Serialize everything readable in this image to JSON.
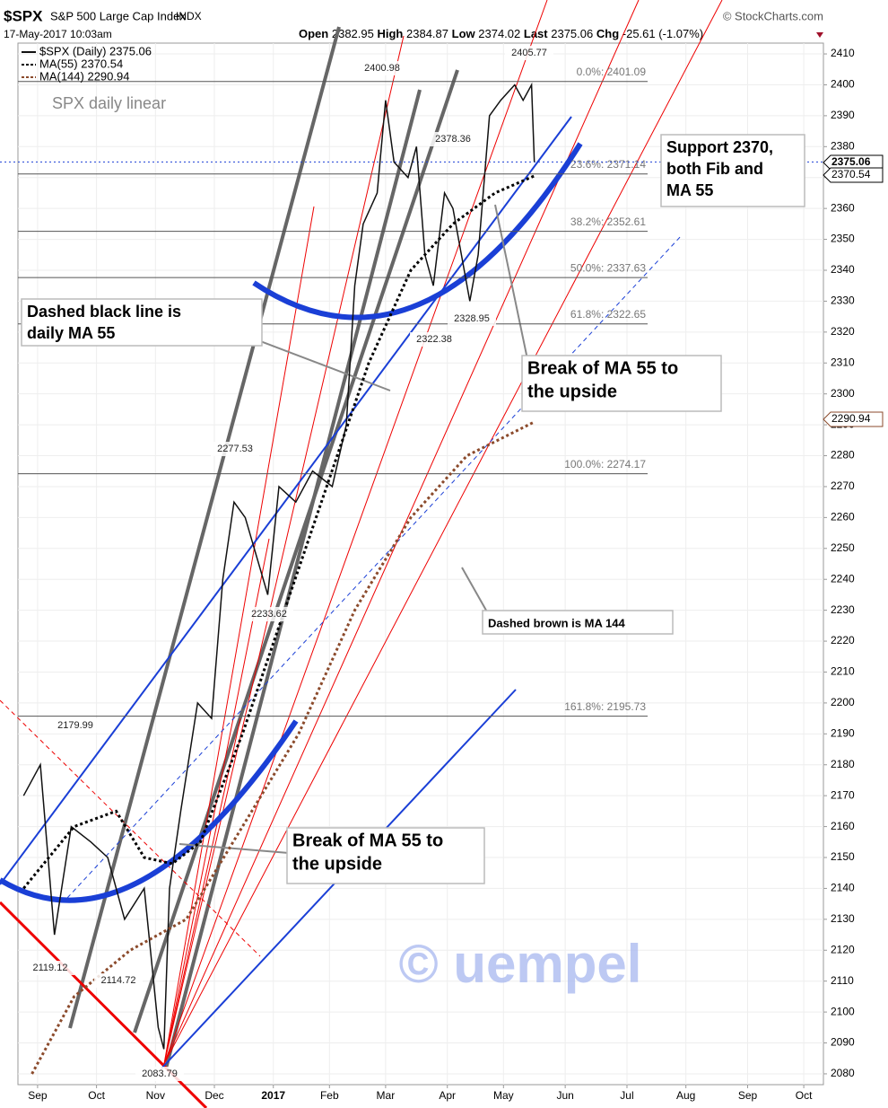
{
  "chart_data": {
    "type": "line",
    "title": "$SPX",
    "subtitle": "S&P 500 Large Cap Index",
    "exchange": "INDX",
    "source": "© StockCharts.com",
    "timestamp": "17-May-2017 10:03am",
    "quote": {
      "open_label": "Open",
      "open": 2382.95,
      "high_label": "High",
      "high": 2384.87,
      "low_label": "Low",
      "low": 2374.02,
      "last_label": "Last",
      "last": 2375.06,
      "change_label": "Chg",
      "change": {
        "value": -25.61,
        "label": "-25.61 (-1.07%)"
      }
    },
    "chart_label": "SPX daily linear",
    "xlim": [
      0,
      287
    ],
    "xticks": [
      {
        "value": 7,
        "label": "Sep"
      },
      {
        "value": 28,
        "label": "Oct"
      },
      {
        "value": 49,
        "label": "Nov"
      },
      {
        "value": 70,
        "label": "Dec"
      },
      {
        "value": 91,
        "label": "2017"
      },
      {
        "value": 111,
        "label": "Feb"
      },
      {
        "value": 131,
        "label": "Mar"
      },
      {
        "value": 153,
        "label": "Apr"
      },
      {
        "value": 173,
        "label": "May"
      },
      {
        "value": 195,
        "label": "Jun"
      },
      {
        "value": 217,
        "label": "Jul"
      },
      {
        "value": 238,
        "label": "Aug"
      },
      {
        "value": 260,
        "label": "Sep"
      },
      {
        "value": 280,
        "label": "Oct"
      }
    ],
    "ylim": [
      2076.5,
      2413.5
    ],
    "yticks": [
      2080,
      2090,
      2100,
      2110,
      2120,
      2130,
      2140,
      2150,
      2160,
      2170,
      2180,
      2190,
      2200,
      2210,
      2220,
      2230,
      2240,
      2250,
      2260,
      2270,
      2280,
      2290,
      2300,
      2310,
      2320,
      2330,
      2340,
      2350,
      2360,
      2370,
      2380,
      2390,
      2400,
      2410
    ],
    "grid": true,
    "series": [
      {
        "name": "$SPX (Daily) 2375.06",
        "color": "#111111",
        "dash": false,
        "x": [
          2,
          8,
          13,
          19,
          26,
          32,
          38,
          45,
          50,
          52,
          54,
          58,
          64,
          69,
          73,
          77,
          81,
          89,
          93,
          99,
          105,
          112,
          117,
          120,
          123,
          128,
          131,
          134,
          139,
          142,
          145,
          148,
          152,
          155,
          158,
          161,
          164,
          168,
          172,
          177,
          180,
          183,
          184
        ],
        "values": [
          2170,
          2180,
          2125,
          2160,
          2155,
          2150,
          2130,
          2140,
          2095,
          2088,
          2140,
          2165,
          2200,
          2195,
          2240,
          2265,
          2260,
          2235,
          2270,
          2265,
          2275,
          2270,
          2290,
          2335,
          2355,
          2365,
          2395,
          2375,
          2370,
          2380,
          2345,
          2335,
          2365,
          2360,
          2345,
          2330,
          2345,
          2390,
          2395,
          2400,
          2395,
          2400,
          2375.06
        ]
      },
      {
        "name": "MA(55) 2370.54",
        "color": "#000000",
        "dash": true,
        "x": [
          2,
          20,
          35,
          45,
          55,
          65,
          80,
          95,
          110,
          125,
          140,
          155,
          170,
          184
        ],
        "values": [
          2140,
          2160,
          2165,
          2150,
          2148,
          2155,
          2190,
          2230,
          2270,
          2310,
          2340,
          2355,
          2365,
          2370.54
        ]
      },
      {
        "name": "MA(144) 2290.94",
        "color": "#8b4a2b",
        "dash": true,
        "x": [
          5,
          20,
          40,
          60,
          80,
          100,
          120,
          140,
          160,
          184
        ],
        "values": [
          2080,
          2105,
          2120,
          2130,
          2160,
          2190,
          2230,
          2260,
          2280,
          2290.94
        ]
      }
    ],
    "price_tags": [
      {
        "value": 2375.06,
        "color": "#000000"
      },
      {
        "value": 2370.54,
        "color": "#000000"
      },
      {
        "value": 2290.94,
        "color": "#8b4a2b"
      }
    ],
    "fib_levels": [
      {
        "label": "0.0%: 2401.09",
        "value": 2401.09
      },
      {
        "label": "23.6%: 2371.14",
        "value": 2371.14
      },
      {
        "label": "38.2%: 2352.61",
        "value": 2352.61
      },
      {
        "label": "50.0%: 2337.63",
        "value": 2337.63
      },
      {
        "label": "61.8%: 2322.65",
        "value": 2322.65
      },
      {
        "label": "100.0%: 2274.17",
        "value": 2274.17
      },
      {
        "label": "161.8%: 2195.73",
        "value": 2195.73
      }
    ],
    "price_notes": [
      2400.98,
      2405.77,
      2378.36,
      2328.95,
      2322.38,
      2277.53,
      2233.62,
      2179.99,
      2119.12,
      2114.72,
      2083.79
    ],
    "annotations": [
      {
        "lines": [
          "Dashed black line is",
          "daily MA 55"
        ],
        "color": "#555555"
      },
      {
        "lines": [
          "Support 2370,",
          "both Fib and",
          "MA 55"
        ],
        "color": "#e00000"
      },
      {
        "lines": [
          "Break of MA 55 to",
          "the upside"
        ],
        "color": "#1a3fd6"
      },
      {
        "lines": [
          "Break of MA 55  to",
          "the upside"
        ],
        "color": "#1a3fd6"
      },
      {
        "lines": [
          "Dashed brown is MA 144"
        ],
        "color": "#555555"
      }
    ],
    "watermark": "© uempel"
  }
}
